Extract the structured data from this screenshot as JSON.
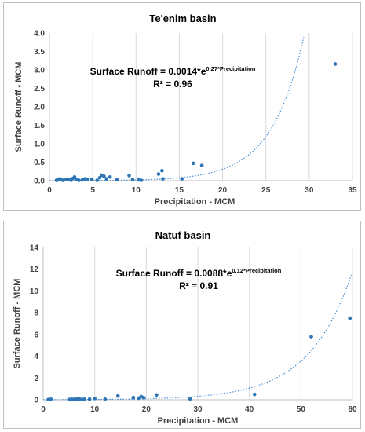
{
  "chart_data": [
    {
      "type": "scatter",
      "title": "Te'enim basin",
      "xlabel": "Precipitation - MCM",
      "ylabel": "Surface Runoff - MCM",
      "xlim": [
        0,
        35
      ],
      "ylim": [
        0,
        4
      ],
      "x_ticks": [
        "0",
        "5",
        "10",
        "15",
        "20",
        "25",
        "30",
        "35"
      ],
      "y_ticks": [
        "0.0",
        "0.5",
        "1.0",
        "1.5",
        "2.0",
        "2.5",
        "3.0",
        "3.5",
        "4.0"
      ],
      "grid": "vertical",
      "equation_prefix": "Surface Runoff = 0.0014*e",
      "equation_exponent": "0.27*Precipitation",
      "r2_label": "R² = 0.96",
      "trendline": {
        "type": "exponential",
        "a": 0.0014,
        "b": 0.27
      },
      "points": [
        [
          0.8,
          0.01
        ],
        [
          1.0,
          0.02
        ],
        [
          1.2,
          0.05
        ],
        [
          1.4,
          0.02
        ],
        [
          1.6,
          0.01
        ],
        [
          1.9,
          0.03
        ],
        [
          2.1,
          0.02
        ],
        [
          2.3,
          0.04
        ],
        [
          2.5,
          0.01
        ],
        [
          2.7,
          0.06
        ],
        [
          2.9,
          0.1
        ],
        [
          3.1,
          0.03
        ],
        [
          3.4,
          0.01
        ],
        [
          3.8,
          0.02
        ],
        [
          4.1,
          0.05
        ],
        [
          4.4,
          0.03
        ],
        [
          4.9,
          0.04
        ],
        [
          5.5,
          0.01
        ],
        [
          5.8,
          0.08
        ],
        [
          6.0,
          0.15
        ],
        [
          6.3,
          0.12
        ],
        [
          6.6,
          0.05
        ],
        [
          7.0,
          0.1
        ],
        [
          7.8,
          0.03
        ],
        [
          9.2,
          0.14
        ],
        [
          9.6,
          0.03
        ],
        [
          10.3,
          0.02
        ],
        [
          10.6,
          0.01
        ],
        [
          12.6,
          0.18
        ],
        [
          13.0,
          0.27
        ],
        [
          13.1,
          0.05
        ],
        [
          15.3,
          0.05
        ],
        [
          16.6,
          0.47
        ],
        [
          17.6,
          0.41
        ],
        [
          33.0,
          3.16
        ]
      ]
    },
    {
      "type": "scatter",
      "title": "Natuf basin",
      "xlabel": "Precipitation - MCM",
      "ylabel": "Surface Runoff - MCM",
      "xlim": [
        0,
        60
      ],
      "ylim": [
        0,
        14
      ],
      "x_ticks": [
        "0",
        "10",
        "20",
        "30",
        "40",
        "50",
        "60"
      ],
      "y_ticks": [
        "0",
        "2",
        "4",
        "6",
        "8",
        "10",
        "12",
        "14"
      ],
      "grid": "vertical",
      "equation_prefix": "Surface Runoff = 0.0088*e",
      "equation_exponent": "0.12*Precipitation",
      "r2_label": "R² = 0.91",
      "trendline": {
        "type": "exponential",
        "a": 0.0088,
        "b": 0.12
      },
      "points": [
        [
          1.0,
          0.02
        ],
        [
          1.5,
          0.05
        ],
        [
          5.0,
          0.03
        ],
        [
          5.5,
          0.05
        ],
        [
          6.0,
          0.04
        ],
        [
          6.5,
          0.06
        ],
        [
          7.0,
          0.08
        ],
        [
          7.5,
          0.03
        ],
        [
          8.0,
          0.05
        ],
        [
          9.0,
          0.06
        ],
        [
          10.0,
          0.12
        ],
        [
          12.0,
          0.05
        ],
        [
          14.5,
          0.35
        ],
        [
          17.5,
          0.2
        ],
        [
          18.5,
          0.15
        ],
        [
          19.0,
          0.3
        ],
        [
          19.5,
          0.2
        ],
        [
          22.0,
          0.45
        ],
        [
          28.5,
          0.08
        ],
        [
          41.0,
          0.5
        ],
        [
          52.0,
          5.8
        ],
        [
          59.5,
          7.5
        ]
      ]
    }
  ]
}
